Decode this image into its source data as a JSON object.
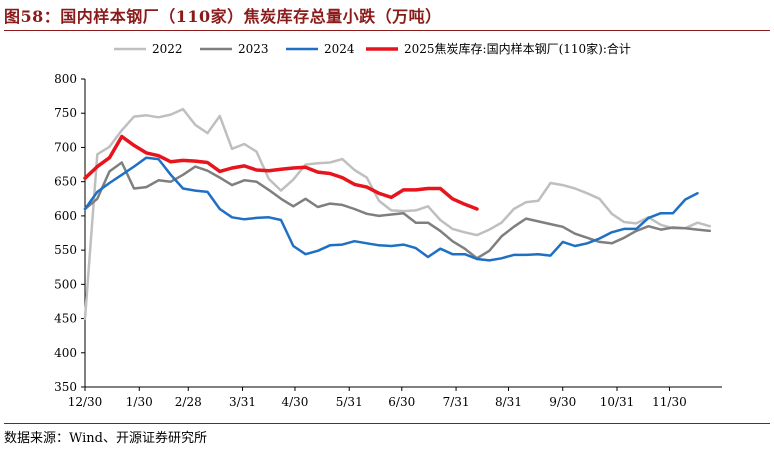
{
  "header": {
    "title": "图58：国内样本钢厂（110家）焦炭库存总量小跌（万吨）"
  },
  "footer": {
    "source": "数据来源：Wind、开源证券研究所"
  },
  "colors": {
    "title": "#8B1A1A",
    "s2022": "#BFBFBF",
    "s2023": "#7F7F7F",
    "s2024": "#1F6FC4",
    "s2025": "#E8141C"
  },
  "chart_data": {
    "type": "line",
    "title": "",
    "xlabel": "",
    "ylabel": "",
    "ylim": [
      350,
      800
    ],
    "yticks": [
      350,
      400,
      450,
      500,
      550,
      600,
      650,
      700,
      750,
      800
    ],
    "xlim": [
      0,
      52
    ],
    "xtick_positions": [
      0,
      4.43,
      8.43,
      12.86,
      17.14,
      21.57,
      25.86,
      30.29,
      34.57,
      39,
      43.43,
      47.71
    ],
    "xtick_labels": [
      "12/30",
      "1/30",
      "2/28",
      "3/31",
      "4/30",
      "5/31",
      "6/30",
      "7/31",
      "8/31",
      "9/30",
      "10/31",
      "11/30"
    ],
    "legend_position": "top",
    "grid": false,
    "series": [
      {
        "name": "2022",
        "color": "#BFBFBF",
        "values": [
          450,
          690,
          701,
          725,
          745,
          747,
          744,
          748,
          756,
          733,
          721,
          746,
          698,
          705,
          694,
          654,
          637,
          653,
          675,
          677,
          678,
          683,
          667,
          656,
          622,
          608,
          607,
          608,
          614,
          594,
          581,
          576,
          572,
          580,
          590,
          610,
          620,
          622,
          648,
          645,
          640,
          633,
          625,
          603,
          591,
          589,
          598,
          587,
          582,
          582,
          590,
          585
        ]
      },
      {
        "name": "2023",
        "color": "#7F7F7F",
        "values": [
          610,
          625,
          665,
          678,
          640,
          642,
          652,
          650,
          660,
          672,
          666,
          656,
          645,
          652,
          650,
          638,
          625,
          614,
          625,
          613,
          618,
          616,
          610,
          603,
          600,
          602,
          604,
          590,
          590,
          578,
          563,
          552,
          538,
          549,
          570,
          584,
          596,
          592,
          588,
          584,
          574,
          568,
          562,
          560,
          568,
          578,
          585,
          580,
          583,
          582,
          580,
          578
        ]
      },
      {
        "name": "2024",
        "color": "#1F6FC4",
        "values": [
          610,
          635,
          648,
          660,
          672,
          685,
          683,
          660,
          640,
          637,
          635,
          610,
          598,
          595,
          597,
          598,
          594,
          556,
          544,
          549,
          557,
          558,
          563,
          560,
          557,
          556,
          558,
          553,
          540,
          552,
          544,
          544,
          537,
          535,
          538,
          543,
          543,
          544,
          542,
          562,
          556,
          560,
          567,
          576,
          581,
          581,
          597,
          604,
          604,
          624,
          633
        ]
      },
      {
        "name": "2025焦炭库存:国内样本钢厂(110家):合计",
        "color": "#E8141C",
        "values": [
          655,
          672,
          685,
          716,
          703,
          692,
          688,
          679,
          681,
          680,
          678,
          665,
          670,
          673,
          667,
          666,
          668,
          670,
          671,
          664,
          662,
          656,
          646,
          642,
          633,
          627,
          638,
          638,
          640,
          640,
          625,
          617,
          610
        ]
      }
    ]
  }
}
